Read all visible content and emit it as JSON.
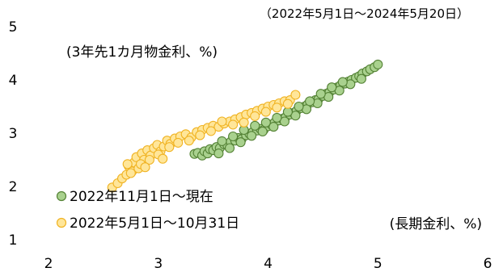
{
  "chart_data": {
    "type": "scatter",
    "title": "",
    "period_note": "（2022年5月1日～2024年5月20日）",
    "ylabel": "(3年先1カ月物金利、%)",
    "xlabel": "(長期金利、%)",
    "xlim": [
      2,
      6
    ],
    "ylim": [
      1,
      5
    ],
    "xticks": [
      "2",
      "3",
      "4",
      "5",
      "6"
    ],
    "yticks": [
      "1",
      "2",
      "3",
      "4",
      "5"
    ],
    "grid": false,
    "legend_position": "bottom-left",
    "series": [
      {
        "name": "2022年11月1日～現在",
        "color": "#a9d18e",
        "stroke": "#548235",
        "points": [
          [
            3.33,
            2.61
          ],
          [
            3.36,
            2.63
          ],
          [
            3.4,
            2.58
          ],
          [
            3.42,
            2.66
          ],
          [
            3.45,
            2.62
          ],
          [
            3.47,
            2.7
          ],
          [
            3.5,
            2.68
          ],
          [
            3.53,
            2.74
          ],
          [
            3.56,
            2.72
          ],
          [
            3.6,
            2.79
          ],
          [
            3.63,
            2.77
          ],
          [
            3.66,
            2.84
          ],
          [
            3.7,
            2.86
          ],
          [
            3.73,
            2.91
          ],
          [
            3.76,
            2.89
          ],
          [
            3.8,
            2.96
          ],
          [
            3.83,
            2.99
          ],
          [
            3.86,
            3.02
          ],
          [
            3.9,
            3.05
          ],
          [
            3.93,
            3.08
          ],
          [
            3.96,
            3.06
          ],
          [
            4.0,
            3.13
          ],
          [
            4.03,
            3.16
          ],
          [
            4.06,
            3.2
          ],
          [
            4.1,
            3.24
          ],
          [
            4.13,
            3.27
          ],
          [
            4.16,
            3.3
          ],
          [
            4.2,
            3.35
          ],
          [
            4.23,
            3.38
          ],
          [
            4.26,
            3.42
          ],
          [
            4.3,
            3.47
          ],
          [
            4.33,
            3.5
          ],
          [
            4.36,
            3.54
          ],
          [
            4.4,
            3.58
          ],
          [
            4.43,
            3.62
          ],
          [
            4.46,
            3.64
          ],
          [
            4.5,
            3.7
          ],
          [
            4.53,
            3.74
          ],
          [
            4.56,
            3.77
          ],
          [
            4.6,
            3.82
          ],
          [
            4.63,
            3.86
          ],
          [
            4.66,
            3.9
          ],
          [
            4.7,
            3.93
          ],
          [
            4.73,
            3.97
          ],
          [
            4.76,
            4.0
          ],
          [
            4.8,
            4.04
          ],
          [
            4.83,
            4.07
          ],
          [
            4.86,
            4.12
          ],
          [
            4.9,
            4.16
          ],
          [
            4.93,
            4.2
          ],
          [
            4.97,
            4.24
          ],
          [
            5.0,
            4.29
          ],
          [
            3.55,
            2.62
          ],
          [
            3.65,
            2.72
          ],
          [
            3.75,
            2.83
          ],
          [
            3.85,
            2.95
          ],
          [
            3.95,
            3.03
          ],
          [
            4.05,
            3.12
          ],
          [
            4.15,
            3.22
          ],
          [
            4.25,
            3.33
          ],
          [
            4.35,
            3.45
          ],
          [
            4.45,
            3.56
          ],
          [
            4.55,
            3.68
          ],
          [
            4.65,
            3.8
          ],
          [
            4.75,
            3.92
          ],
          [
            4.85,
            4.02
          ],
          [
            3.58,
            2.85
          ],
          [
            3.68,
            2.94
          ],
          [
            3.78,
            3.06
          ],
          [
            3.88,
            3.14
          ],
          [
            3.98,
            3.2
          ],
          [
            4.08,
            3.29
          ],
          [
            4.18,
            3.4
          ],
          [
            4.28,
            3.5
          ],
          [
            4.38,
            3.6
          ],
          [
            4.48,
            3.74
          ],
          [
            4.58,
            3.86
          ],
          [
            4.68,
            3.96
          ]
        ]
      },
      {
        "name": "2022年5月1日～10月31日",
        "color": "#ffe699",
        "stroke": "#f0b323",
        "points": [
          [
            2.58,
            1.98
          ],
          [
            2.63,
            2.06
          ],
          [
            2.67,
            2.15
          ],
          [
            2.71,
            2.22
          ],
          [
            2.73,
            2.38
          ],
          [
            2.76,
            2.28
          ],
          [
            2.78,
            2.45
          ],
          [
            2.8,
            2.55
          ],
          [
            2.82,
            2.34
          ],
          [
            2.85,
            2.62
          ],
          [
            2.87,
            2.5
          ],
          [
            2.9,
            2.68
          ],
          [
            2.93,
            2.58
          ],
          [
            2.96,
            2.72
          ],
          [
            2.99,
            2.78
          ],
          [
            3.02,
            2.66
          ],
          [
            3.05,
            2.75
          ],
          [
            3.08,
            2.86
          ],
          [
            3.11,
            2.8
          ],
          [
            3.15,
            2.9
          ],
          [
            3.2,
            2.94
          ],
          [
            3.25,
            2.98
          ],
          [
            3.3,
            2.92
          ],
          [
            3.35,
            3.02
          ],
          [
            3.4,
            3.06
          ],
          [
            3.45,
            3.1
          ],
          [
            3.5,
            3.14
          ],
          [
            3.55,
            3.12
          ],
          [
            3.6,
            3.18
          ],
          [
            3.65,
            3.22
          ],
          [
            3.7,
            3.26
          ],
          [
            3.75,
            3.3
          ],
          [
            3.8,
            3.35
          ],
          [
            3.85,
            3.38
          ],
          [
            3.9,
            3.42
          ],
          [
            3.95,
            3.46
          ],
          [
            4.0,
            3.5
          ],
          [
            4.05,
            3.53
          ],
          [
            4.1,
            3.56
          ],
          [
            4.15,
            3.6
          ],
          [
            4.2,
            3.62
          ],
          [
            4.25,
            3.72
          ],
          [
            2.75,
            2.25
          ],
          [
            2.84,
            2.42
          ],
          [
            2.92,
            2.5
          ],
          [
            3.0,
            2.6
          ],
          [
            3.1,
            2.74
          ],
          [
            3.18,
            2.82
          ],
          [
            3.28,
            2.86
          ],
          [
            3.38,
            2.96
          ],
          [
            3.48,
            3.04
          ],
          [
            3.58,
            3.22
          ],
          [
            3.68,
            3.16
          ],
          [
            3.78,
            3.2
          ],
          [
            3.88,
            3.32
          ],
          [
            3.98,
            3.4
          ],
          [
            4.08,
            3.48
          ],
          [
            4.18,
            3.55
          ],
          [
            2.72,
            2.42
          ],
          [
            2.88,
            2.36
          ],
          [
            3.04,
            2.52
          ]
        ]
      }
    ]
  }
}
